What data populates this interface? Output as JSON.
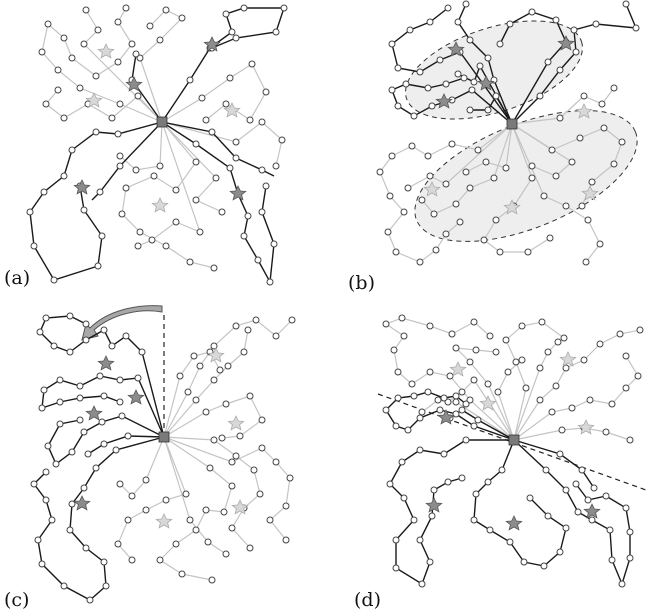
{
  "panels": [
    {
      "id": "a",
      "label": "(a)"
    },
    {
      "id": "b",
      "label": "(b)"
    },
    {
      "id": "c",
      "label": "(c)"
    },
    {
      "id": "d",
      "label": "(d)"
    }
  ],
  "colors": {
    "active_edge": "#1a1a1a",
    "inactive_edge": "#c4c4c4",
    "node_fill": "#ffffff",
    "node_stroke": "#444444",
    "depot_fill": "#7a7a7a",
    "star_active": "#8c8c8c",
    "star_inactive": "#d8d8d8",
    "cluster_fill": "#eeeeee"
  }
}
